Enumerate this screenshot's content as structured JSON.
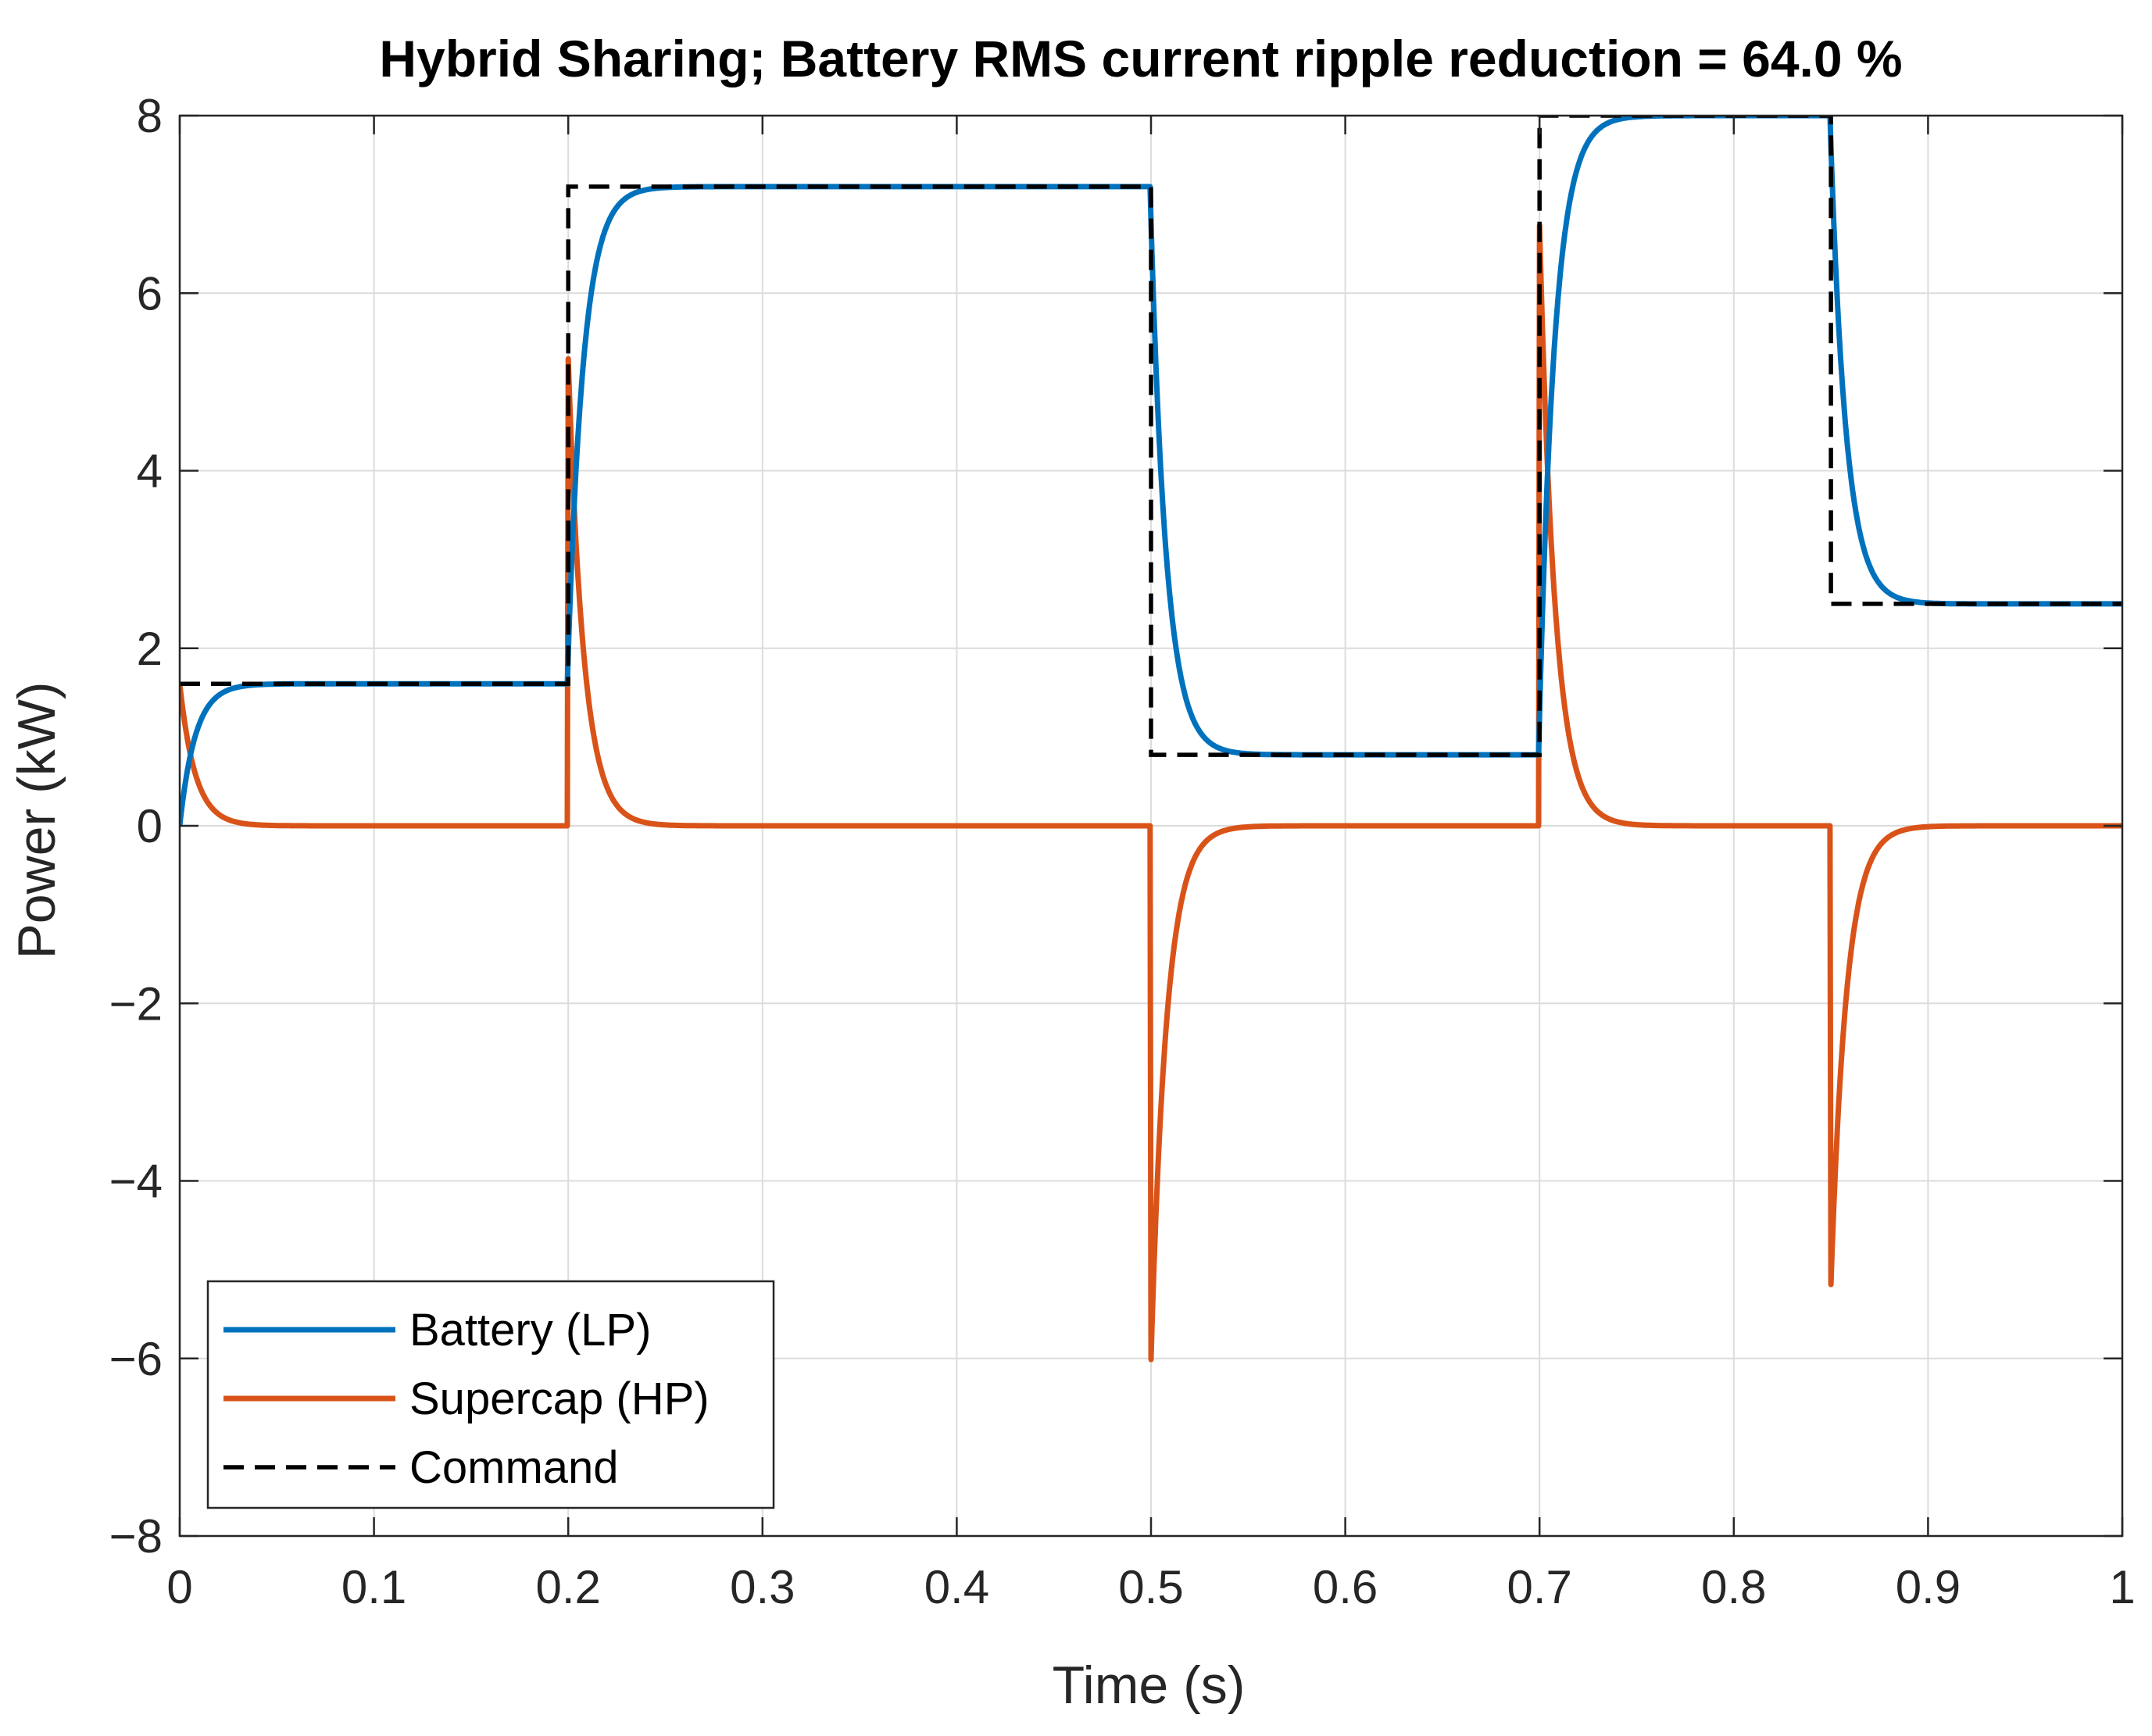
{
  "chart_data": {
    "type": "line",
    "title": "Hybrid Sharing; Battery RMS current ripple reduction = 64.0 %",
    "xlabel": "Time (s)",
    "ylabel": "Power (kW)",
    "xlim": [
      0,
      1
    ],
    "ylim": [
      -8,
      8
    ],
    "x_ticks": [
      0,
      0.1,
      0.2,
      0.3,
      0.4,
      0.5,
      0.6,
      0.7,
      0.8,
      0.9,
      1
    ],
    "x_tick_labels": [
      "0",
      "0.1",
      "0.2",
      "0.3",
      "0.4",
      "0.5",
      "0.6",
      "0.7",
      "0.8",
      "0.9",
      "1"
    ],
    "y_ticks": [
      -8,
      -6,
      -4,
      -2,
      0,
      2,
      4,
      6,
      8
    ],
    "y_tick_labels": [
      "−8",
      "−6",
      "−4",
      "−2",
      "0",
      "2",
      "4",
      "6",
      "8"
    ],
    "grid": true,
    "legend_position": "bottom-left",
    "command_steps": [
      {
        "t": 0.0,
        "value": 1.6
      },
      {
        "t": 0.2,
        "value": 7.2
      },
      {
        "t": 0.5,
        "value": 0.8
      },
      {
        "t": 0.7,
        "value": 8.0
      },
      {
        "t": 0.85,
        "value": 2.5
      }
    ],
    "filter_time_constant_s": 0.008,
    "series": [
      {
        "name": "Battery (LP)",
        "color": "#0072BD",
        "style": "solid",
        "x": [
          0,
          0.005,
          0.01,
          0.02,
          0.03,
          0.05,
          0.2,
          0.205,
          0.21,
          0.22,
          0.23,
          0.25,
          0.5,
          0.505,
          0.51,
          0.52,
          0.53,
          0.55,
          0.7,
          0.705,
          0.71,
          0.72,
          0.73,
          0.75,
          0.85,
          0.855,
          0.86,
          0.87,
          0.88,
          0.9,
          1.0
        ],
        "y": [
          0,
          0.74,
          1.15,
          1.46,
          1.56,
          1.6,
          1.6,
          4.19,
          5.61,
          6.74,
          7.07,
          7.2,
          7.2,
          4.24,
          2.62,
          1.35,
          0.97,
          0.8,
          0.8,
          4.22,
          6.09,
          7.58,
          7.88,
          8.0,
          8.0,
          5.44,
          4.05,
          2.95,
          2.62,
          2.5,
          2.5
        ]
      },
      {
        "name": "Supercap (HP)",
        "color": "#D95319",
        "style": "solid",
        "x": [
          0,
          0.005,
          0.01,
          0.02,
          0.03,
          0.05,
          0.1999,
          0.2,
          0.205,
          0.21,
          0.22,
          0.23,
          0.25,
          0.4999,
          0.5,
          0.505,
          0.51,
          0.52,
          0.53,
          0.55,
          0.6999,
          0.7,
          0.705,
          0.71,
          0.72,
          0.73,
          0.75,
          0.8499,
          0.85,
          0.855,
          0.86,
          0.87,
          0.88,
          0.9,
          1.0
        ],
        "y": [
          1.6,
          0.86,
          0.46,
          0.13,
          0.04,
          0,
          0,
          5.6,
          3.01,
          1.59,
          0.46,
          0.13,
          0,
          0,
          -6.4,
          -3.44,
          -1.82,
          -0.55,
          -0.17,
          0,
          0,
          7.2,
          3.78,
          1.91,
          0.42,
          0.12,
          0,
          0,
          -5.5,
          -2.94,
          -1.55,
          -0.45,
          -0.12,
          0,
          0
        ]
      },
      {
        "name": "Command",
        "color": "#000000",
        "style": "dashed",
        "x": [
          0,
          0.2,
          0.2,
          0.5,
          0.5,
          0.7,
          0.7,
          0.85,
          0.85,
          1.0
        ],
        "y": [
          1.6,
          1.6,
          7.2,
          7.2,
          0.8,
          0.8,
          8.0,
          8.0,
          2.5,
          2.5
        ]
      }
    ]
  }
}
